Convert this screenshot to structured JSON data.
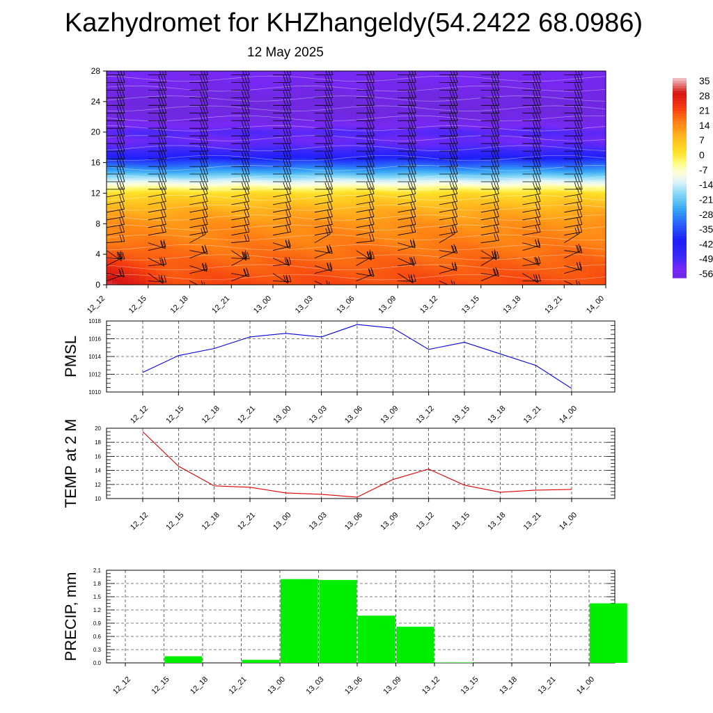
{
  "header": {
    "title": "Kazhydromet for KHZhangeldy(54.2422 68.0986)",
    "date": "12 May 2025"
  },
  "colors": {
    "pmsl_line": "#0000dd",
    "temp_line": "#dd0000",
    "precip_bar": "#00ee00",
    "grid": "#000000"
  },
  "chart_data": [
    {
      "type": "heatmap",
      "name": "vertical cross-section temperature with wind barbs",
      "x": [
        "12_12",
        "12_15",
        "12_18",
        "12_21",
        "13_00",
        "13_03",
        "13_06",
        "13_09",
        "13_12",
        "13_15",
        "13_18",
        "13_21",
        "14_00"
      ],
      "y_ticks": [
        0,
        4,
        8,
        12,
        16,
        20,
        24,
        28
      ],
      "ylim": [
        0,
        28
      ],
      "colorbar_labels": [
        "35",
        "28",
        "21",
        "14",
        "7",
        "0",
        "-7",
        "-14",
        "-21",
        "-28",
        "-35",
        "-42",
        "-49",
        "-56"
      ],
      "colorbar_range": [
        -60,
        35
      ],
      "temperature_profile_by_level": {
        "levels": [
          0,
          2,
          4,
          6,
          8,
          10,
          12,
          13,
          14,
          15,
          16,
          17,
          18,
          19,
          20,
          21,
          22,
          23,
          24,
          25,
          26,
          27,
          28
        ],
        "values": [
          20,
          18,
          16,
          14,
          12,
          8,
          1,
          -8,
          -18,
          -28,
          -36,
          -45,
          -52,
          -55,
          -52,
          -57,
          -60,
          -61,
          -61,
          -60,
          -58,
          -57,
          -56
        ]
      },
      "surface_warm_anomaly": {
        "x": [
          "12_12",
          "12_15"
        ],
        "y": [
          0,
          6
        ],
        "value": 30
      }
    },
    {
      "type": "line",
      "ylabel": "PMSL",
      "x": [
        "12_12",
        "12_15",
        "12_18",
        "12_21",
        "13_00",
        "13_03",
        "13_06",
        "13_09",
        "13_12",
        "13_15",
        "13_18",
        "13_21",
        "14_00"
      ],
      "series": [
        {
          "values": [
            1012.2,
            1014.1,
            1014.9,
            1016.2,
            1016.6,
            1016.2,
            1017.6,
            1017.2,
            1014.8,
            1015.6,
            1014.3,
            1013.0,
            1010.4
          ]
        }
      ],
      "ylim": [
        1010,
        1018
      ],
      "y_ticks": [
        1010,
        1012,
        1014,
        1016,
        1018
      ],
      "grid": true
    },
    {
      "type": "line",
      "ylabel": "TEMP at 2 M",
      "x": [
        "12_12",
        "12_15",
        "12_18",
        "12_21",
        "13_00",
        "13_03",
        "13_06",
        "13_09",
        "13_12",
        "13_15",
        "13_18",
        "13_21",
        "14_00"
      ],
      "series": [
        {
          "values": [
            19.5,
            14.6,
            11.8,
            11.6,
            10.8,
            10.6,
            10.2,
            12.7,
            14.2,
            11.9,
            10.9,
            11.2,
            11.3
          ]
        }
      ],
      "ylim": [
        10,
        20
      ],
      "y_ticks": [
        10,
        12,
        14,
        16,
        18,
        20
      ],
      "grid": true
    },
    {
      "type": "bar",
      "ylabel": "PRECIP, mm",
      "categories": [
        "12_12",
        "12_15",
        "12_18",
        "12_21",
        "13_00",
        "13_03",
        "13_06",
        "13_09",
        "13_12",
        "13_15",
        "13_18",
        "13_21",
        "14_00"
      ],
      "values": [
        0.0,
        0.15,
        0.0,
        0.07,
        1.9,
        1.88,
        1.07,
        0.82,
        0.01,
        0.0,
        0.0,
        0.0,
        1.35
      ],
      "ylim": [
        0,
        2.1
      ],
      "y_ticks": [
        "0.0",
        "0.3",
        "0.6",
        "0.9",
        "1.2",
        "1.5",
        "1.8",
        "2.1"
      ],
      "grid": true
    }
  ]
}
